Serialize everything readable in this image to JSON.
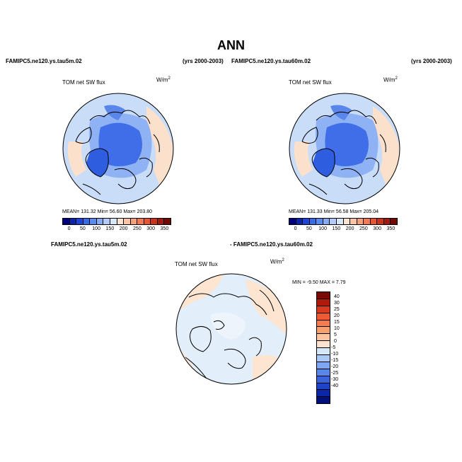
{
  "title": "ANN",
  "panel1": {
    "case": "FAMIPC5.ne120.ys.tau5m.02",
    "years": "(yrs 2000-2003)",
    "variable": "TOM net SW flux",
    "units_base": "W/m",
    "units_exp": "2",
    "stats": "MEAN= 131.32   Min=   56.60   Max= 203.80"
  },
  "panel2": {
    "case": "FAMIPC5.ne120.ys.tau60m.02",
    "years": "(yrs 2000-2003)",
    "variable": "TOM net SW flux",
    "units_base": "W/m",
    "units_exp": "2",
    "stats": "MEAN= 131.33   Min=   56.58   Max= 205.04"
  },
  "diff": {
    "case_a": "FAMIPC5.ne120.ys.tau5m.02",
    "case_b": "- FAMIPC5.ne120.ys.tau60m.02",
    "variable": "TOM net SW flux",
    "units_base": "W/m",
    "units_exp": "2",
    "minmax": "MIN =   -9.50  MAX =    7.79"
  },
  "abs_colorbar": {
    "ticks": [
      "0",
      "50",
      "100",
      "150",
      "200",
      "250",
      "300",
      "350"
    ],
    "colors": [
      "#00007f",
      "#0b24b0",
      "#1f45d6",
      "#3b6ae6",
      "#5a8cf0",
      "#86acf5",
      "#b0ccf8",
      "#d6e6fb",
      "#fde3d0",
      "#fbc3a3",
      "#f99f7a",
      "#f47a55",
      "#e65535",
      "#c9331f",
      "#a31a10",
      "#730a06"
    ]
  },
  "diff_colorbar": {
    "labels": [
      "40",
      "30",
      "25",
      "20",
      "15",
      "10",
      "5",
      "0",
      "-5",
      "-10",
      "-15",
      "-20",
      "-25",
      "-30",
      "-40"
    ],
    "colors": [
      "#7a0a05",
      "#b01a0d",
      "#d63b1f",
      "#ef5a33",
      "#f77a4d",
      "#f9a070",
      "#fbc5a0",
      "#fde3d0",
      "#d6e6fb",
      "#aac8f7",
      "#7fa6f2",
      "#5a86ea",
      "#3a64dc",
      "#1f43c8",
      "#0b27a8",
      "#00107a"
    ]
  },
  "colors": {
    "land_outline": "#000000",
    "ocean_low": "#c9ddf9",
    "arctic_low": "#3f6ee8",
    "greenland": "#2e5de0",
    "warm_rim": "#fbe0cc",
    "diff_bg": "#e3eefb",
    "diff_warm": "#fde5d2"
  }
}
